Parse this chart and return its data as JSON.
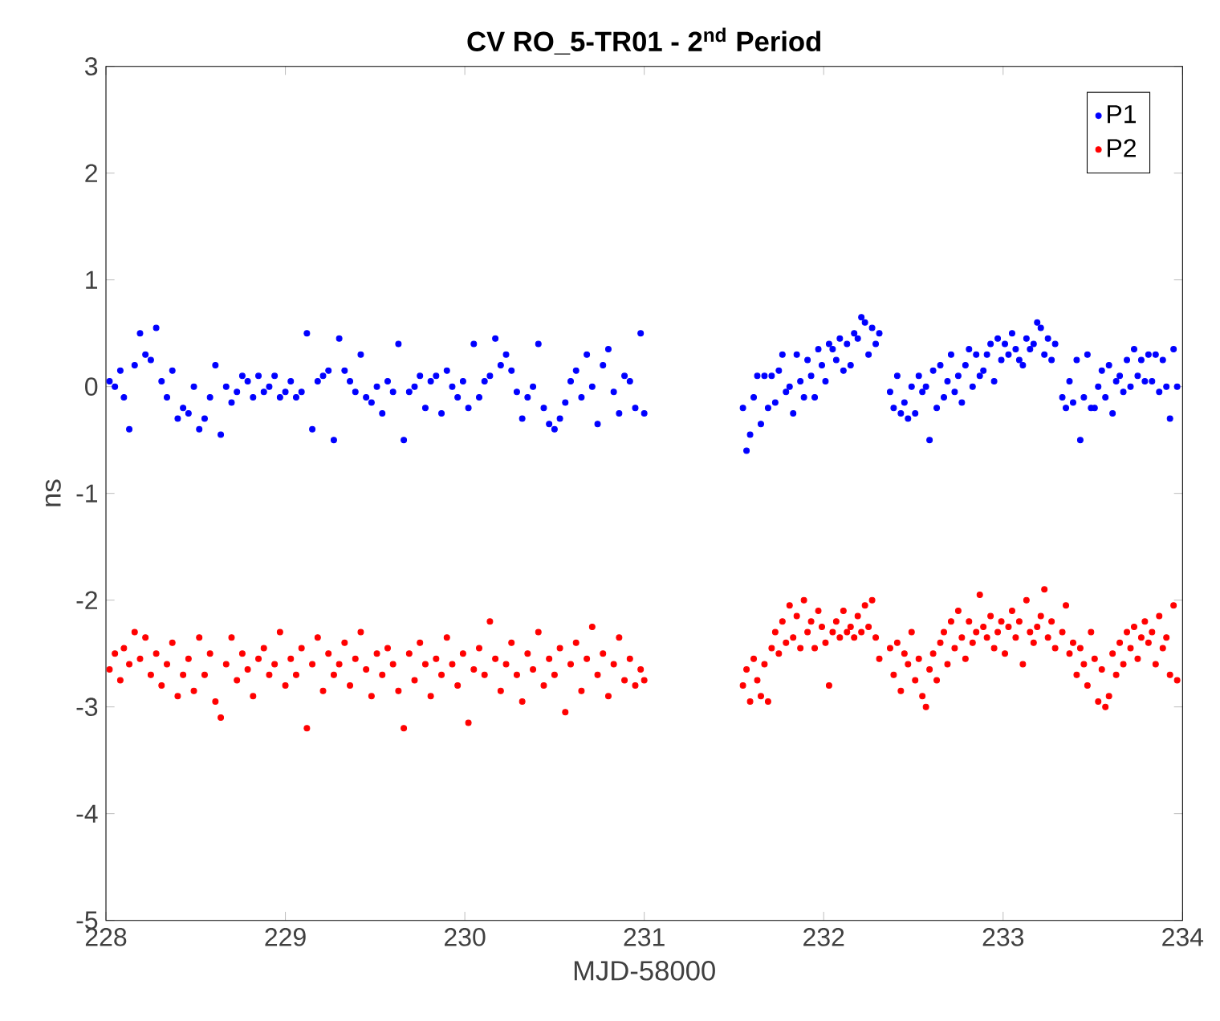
{
  "chart_data": {
    "type": "scatter",
    "title": "CV RO_5-TR01 - 2$^{nd}$ Period",
    "xlabel": "MJD-58000",
    "ylabel": "ns",
    "xlim": [
      228,
      234
    ],
    "ylim": [
      -5,
      3
    ],
    "xticks": [
      228,
      229,
      230,
      231,
      232,
      233,
      234
    ],
    "yticks": [
      -5,
      -4,
      -3,
      -2,
      -1,
      0,
      1,
      2,
      3
    ],
    "grid": false,
    "legend": "top right",
    "marker": "circle",
    "series": [
      {
        "name": "P1",
        "color": "#0000ff",
        "x": [
          228.02,
          228.05,
          228.08,
          228.1,
          228.13,
          228.16,
          228.19,
          228.22,
          228.25,
          228.28,
          228.31,
          228.34,
          228.37,
          228.4,
          228.43,
          228.46,
          228.49,
          228.52,
          228.55,
          228.58,
          228.61,
          228.64,
          228.67,
          228.7,
          228.73,
          228.76,
          228.79,
          228.82,
          228.85,
          228.88,
          228.91,
          228.94,
          228.97,
          229.0,
          229.03,
          229.06,
          229.09,
          229.12,
          229.15,
          229.18,
          229.21,
          229.24,
          229.27,
          229.3,
          229.33,
          229.36,
          229.39,
          229.42,
          229.45,
          229.48,
          229.51,
          229.54,
          229.57,
          229.6,
          229.63,
          229.66,
          229.69,
          229.72,
          229.75,
          229.78,
          229.81,
          229.84,
          229.87,
          229.9,
          229.93,
          229.96,
          229.99,
          230.02,
          230.05,
          230.08,
          230.11,
          230.14,
          230.17,
          230.2,
          230.23,
          230.26,
          230.29,
          230.32,
          230.35,
          230.38,
          230.41,
          230.44,
          230.47,
          230.5,
          230.53,
          230.56,
          230.59,
          230.62,
          230.65,
          230.68,
          230.71,
          230.74,
          230.77,
          230.8,
          230.83,
          230.86,
          230.89,
          230.92,
          230.95,
          230.98,
          231.0,
          231.55,
          231.57,
          231.59,
          231.61,
          231.63,
          231.65,
          231.67,
          231.69,
          231.71,
          231.73,
          231.75,
          231.77,
          231.79,
          231.81,
          231.83,
          231.85,
          231.87,
          231.89,
          231.91,
          231.93,
          231.95,
          231.97,
          231.99,
          232.01,
          232.03,
          232.05,
          232.07,
          232.09,
          232.11,
          232.13,
          232.15,
          232.17,
          232.19,
          232.21,
          232.23,
          232.25,
          232.27,
          232.29,
          232.31,
          232.37,
          232.39,
          232.41,
          232.43,
          232.45,
          232.47,
          232.49,
          232.51,
          232.53,
          232.55,
          232.57,
          232.59,
          232.61,
          232.63,
          232.65,
          232.67,
          232.69,
          232.71,
          232.73,
          232.75,
          232.77,
          232.79,
          232.81,
          232.83,
          232.85,
          232.87,
          232.89,
          232.91,
          232.93,
          232.95,
          232.97,
          232.99,
          233.01,
          233.03,
          233.05,
          233.07,
          233.09,
          233.11,
          233.13,
          233.15,
          233.17,
          233.19,
          233.21,
          233.23,
          233.25,
          233.27,
          233.29,
          233.33,
          233.35,
          233.37,
          233.39,
          233.41,
          233.43,
          233.45,
          233.47,
          233.49,
          233.51,
          233.53,
          233.55,
          233.57,
          233.59,
          233.61,
          233.63,
          233.65,
          233.67,
          233.69,
          233.71,
          233.73,
          233.75,
          233.77,
          233.79,
          233.81,
          233.83,
          233.85,
          233.87,
          233.89,
          233.91,
          233.93,
          233.95,
          233.97
        ],
        "values": [
          0.05,
          0.0,
          0.15,
          -0.1,
          -0.4,
          0.2,
          0.5,
          0.3,
          0.25,
          0.55,
          0.05,
          -0.1,
          0.15,
          -0.3,
          -0.2,
          -0.25,
          0.0,
          -0.4,
          -0.3,
          -0.1,
          0.2,
          -0.45,
          0.0,
          -0.15,
          -0.05,
          0.1,
          0.05,
          -0.1,
          0.1,
          -0.05,
          0.0,
          0.1,
          -0.1,
          -0.05,
          0.05,
          -0.1,
          -0.05,
          0.5,
          -0.4,
          0.05,
          0.1,
          0.15,
          -0.5,
          0.45,
          0.15,
          0.05,
          -0.05,
          0.3,
          -0.1,
          -0.15,
          0.0,
          -0.25,
          0.05,
          -0.05,
          0.4,
          -0.5,
          -0.05,
          0.0,
          0.1,
          -0.2,
          0.05,
          0.1,
          -0.25,
          0.15,
          0.0,
          -0.1,
          0.05,
          -0.2,
          0.4,
          -0.1,
          0.05,
          0.1,
          0.45,
          0.2,
          0.3,
          0.15,
          -0.05,
          -0.3,
          -0.1,
          0.0,
          0.4,
          -0.2,
          -0.35,
          -0.4,
          -0.3,
          -0.15,
          0.05,
          0.15,
          -0.1,
          0.3,
          0.0,
          -0.35,
          0.2,
          0.35,
          -0.05,
          -0.25,
          0.1,
          0.05,
          -0.2,
          0.5,
          -0.25,
          -0.2,
          -0.6,
          -0.45,
          -0.1,
          0.1,
          -0.35,
          0.1,
          -0.2,
          0.1,
          -0.15,
          0.15,
          0.3,
          -0.05,
          0.0,
          -0.25,
          0.3,
          0.05,
          -0.1,
          0.25,
          0.1,
          -0.1,
          0.35,
          0.2,
          0.05,
          0.4,
          0.35,
          0.25,
          0.45,
          0.15,
          0.4,
          0.2,
          0.5,
          0.45,
          0.65,
          0.6,
          0.3,
          0.55,
          0.4,
          0.5,
          -0.05,
          -0.2,
          0.1,
          -0.25,
          -0.15,
          -0.3,
          0.0,
          -0.25,
          0.1,
          -0.05,
          0.0,
          -0.5,
          0.15,
          -0.2,
          0.2,
          -0.1,
          0.05,
          0.3,
          -0.05,
          0.1,
          -0.15,
          0.2,
          0.35,
          0.0,
          0.3,
          0.1,
          0.15,
          0.3,
          0.4,
          0.05,
          0.45,
          0.25,
          0.4,
          0.3,
          0.5,
          0.35,
          0.25,
          0.2,
          0.45,
          0.35,
          0.4,
          0.6,
          0.55,
          0.3,
          0.45,
          0.25,
          0.4,
          -0.1,
          -0.2,
          0.05,
          -0.15,
          0.25,
          -0.5,
          -0.1,
          0.3,
          -0.2,
          -0.2,
          0.0,
          0.15,
          -0.1,
          0.2,
          -0.25,
          0.05,
          0.1,
          -0.05,
          0.25,
          0.0,
          0.35,
          0.1,
          0.25,
          0.05,
          0.3,
          0.05,
          0.3,
          -0.05,
          0.25,
          0.0,
          -0.3,
          0.35,
          0.0
        ]
      },
      {
        "name": "P2",
        "color": "#ff0000",
        "x": [
          228.02,
          228.05,
          228.08,
          228.1,
          228.13,
          228.16,
          228.19,
          228.22,
          228.25,
          228.28,
          228.31,
          228.34,
          228.37,
          228.4,
          228.43,
          228.46,
          228.49,
          228.52,
          228.55,
          228.58,
          228.61,
          228.64,
          228.67,
          228.7,
          228.73,
          228.76,
          228.79,
          228.82,
          228.85,
          228.88,
          228.91,
          228.94,
          228.97,
          229.0,
          229.03,
          229.06,
          229.09,
          229.12,
          229.15,
          229.18,
          229.21,
          229.24,
          229.27,
          229.3,
          229.33,
          229.36,
          229.39,
          229.42,
          229.45,
          229.48,
          229.51,
          229.54,
          229.57,
          229.6,
          229.63,
          229.66,
          229.69,
          229.72,
          229.75,
          229.78,
          229.81,
          229.84,
          229.87,
          229.9,
          229.93,
          229.96,
          229.99,
          230.02,
          230.05,
          230.08,
          230.11,
          230.14,
          230.17,
          230.2,
          230.23,
          230.26,
          230.29,
          230.32,
          230.35,
          230.38,
          230.41,
          230.44,
          230.47,
          230.5,
          230.53,
          230.56,
          230.59,
          230.62,
          230.65,
          230.68,
          230.71,
          230.74,
          230.77,
          230.8,
          230.83,
          230.86,
          230.89,
          230.92,
          230.95,
          230.98,
          231.0,
          231.55,
          231.57,
          231.59,
          231.61,
          231.63,
          231.65,
          231.67,
          231.69,
          231.71,
          231.73,
          231.75,
          231.77,
          231.79,
          231.81,
          231.83,
          231.85,
          231.87,
          231.89,
          231.91,
          231.93,
          231.95,
          231.97,
          231.99,
          232.01,
          232.03,
          232.05,
          232.07,
          232.09,
          232.11,
          232.13,
          232.15,
          232.17,
          232.19,
          232.21,
          232.23,
          232.25,
          232.27,
          232.29,
          232.31,
          232.37,
          232.39,
          232.41,
          232.43,
          232.45,
          232.47,
          232.49,
          232.51,
          232.53,
          232.55,
          232.57,
          232.59,
          232.61,
          232.63,
          232.65,
          232.67,
          232.69,
          232.71,
          232.73,
          232.75,
          232.77,
          232.79,
          232.81,
          232.83,
          232.85,
          232.87,
          232.89,
          232.91,
          232.93,
          232.95,
          232.97,
          232.99,
          233.01,
          233.03,
          233.05,
          233.07,
          233.09,
          233.11,
          233.13,
          233.15,
          233.17,
          233.19,
          233.21,
          233.23,
          233.25,
          233.27,
          233.29,
          233.33,
          233.35,
          233.37,
          233.39,
          233.41,
          233.43,
          233.45,
          233.47,
          233.49,
          233.51,
          233.53,
          233.55,
          233.57,
          233.59,
          233.61,
          233.63,
          233.65,
          233.67,
          233.69,
          233.71,
          233.73,
          233.75,
          233.77,
          233.79,
          233.81,
          233.83,
          233.85,
          233.87,
          233.89,
          233.91,
          233.93,
          233.95,
          233.97
        ],
        "values": [
          -2.65,
          -2.5,
          -2.75,
          -2.45,
          -2.6,
          -2.3,
          -2.55,
          -2.35,
          -2.7,
          -2.5,
          -2.8,
          -2.6,
          -2.4,
          -2.9,
          -2.7,
          -2.55,
          -2.85,
          -2.35,
          -2.7,
          -2.5,
          -2.95,
          -3.1,
          -2.6,
          -2.35,
          -2.75,
          -2.5,
          -2.65,
          -2.9,
          -2.55,
          -2.45,
          -2.7,
          -2.6,
          -2.3,
          -2.8,
          -2.55,
          -2.7,
          -2.45,
          -3.2,
          -2.6,
          -2.35,
          -2.85,
          -2.5,
          -2.7,
          -2.6,
          -2.4,
          -2.8,
          -2.55,
          -2.3,
          -2.65,
          -2.9,
          -2.5,
          -2.7,
          -2.45,
          -2.6,
          -2.85,
          -3.2,
          -2.5,
          -2.75,
          -2.4,
          -2.6,
          -2.9,
          -2.55,
          -2.7,
          -2.35,
          -2.6,
          -2.8,
          -2.5,
          -3.15,
          -2.65,
          -2.45,
          -2.7,
          -2.2,
          -2.55,
          -2.85,
          -2.6,
          -2.4,
          -2.7,
          -2.95,
          -2.5,
          -2.65,
          -2.3,
          -2.8,
          -2.55,
          -2.7,
          -2.45,
          -3.05,
          -2.6,
          -2.4,
          -2.85,
          -2.55,
          -2.25,
          -2.7,
          -2.5,
          -2.9,
          -2.6,
          -2.35,
          -2.75,
          -2.55,
          -2.8,
          -2.65,
          -2.75,
          -2.8,
          -2.65,
          -2.95,
          -2.55,
          -2.75,
          -2.9,
          -2.6,
          -2.95,
          -2.45,
          -2.3,
          -2.5,
          -2.2,
          -2.4,
          -2.05,
          -2.35,
          -2.15,
          -2.45,
          -2.0,
          -2.3,
          -2.2,
          -2.45,
          -2.1,
          -2.25,
          -2.4,
          -2.8,
          -2.3,
          -2.2,
          -2.35,
          -2.1,
          -2.3,
          -2.25,
          -2.35,
          -2.15,
          -2.3,
          -2.05,
          -2.25,
          -2.0,
          -2.35,
          -2.55,
          -2.45,
          -2.7,
          -2.4,
          -2.85,
          -2.5,
          -2.6,
          -2.3,
          -2.75,
          -2.55,
          -2.9,
          -3.0,
          -2.65,
          -2.5,
          -2.75,
          -2.4,
          -2.3,
          -2.6,
          -2.2,
          -2.45,
          -2.1,
          -2.35,
          -2.55,
          -2.2,
          -2.4,
          -2.3,
          -1.95,
          -2.25,
          -2.35,
          -2.15,
          -2.45,
          -2.3,
          -2.2,
          -2.5,
          -2.25,
          -2.1,
          -2.35,
          -2.2,
          -2.6,
          -2.0,
          -2.3,
          -2.4,
          -2.25,
          -2.15,
          -1.9,
          -2.35,
          -2.2,
          -2.45,
          -2.3,
          -2.05,
          -2.5,
          -2.4,
          -2.7,
          -2.45,
          -2.6,
          -2.8,
          -2.3,
          -2.55,
          -2.95,
          -2.65,
          -3.0,
          -2.9,
          -2.5,
          -2.7,
          -2.4,
          -2.6,
          -2.3,
          -2.45,
          -2.25,
          -2.55,
          -2.35,
          -2.2,
          -2.4,
          -2.3,
          -2.6,
          -2.15,
          -2.45,
          -2.35,
          -2.7,
          -2.05,
          -2.75
        ]
      }
    ]
  }
}
